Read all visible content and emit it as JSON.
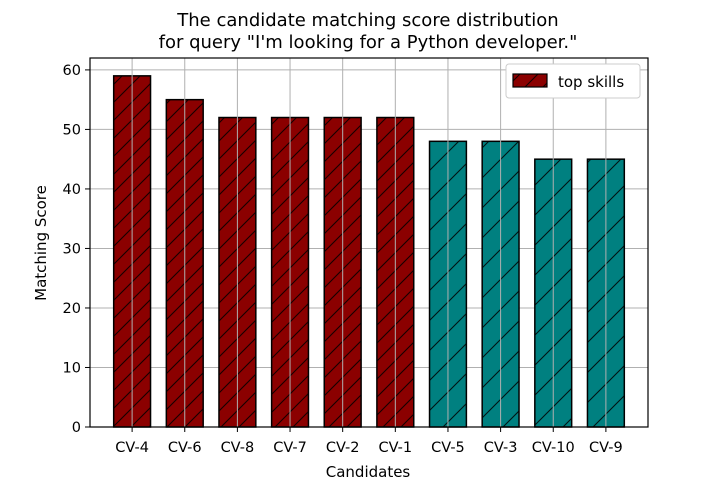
{
  "chart_data": {
    "type": "bar",
    "title_line1": "The candidate matching score distribution",
    "title_line2": "for query \"I'm looking for a Python developer.\"",
    "xlabel": "Candidates",
    "ylabel": "Matching Score",
    "ylim": [
      0,
      62
    ],
    "yticks": [
      0,
      10,
      20,
      30,
      40,
      50,
      60
    ],
    "grid": true,
    "legend_position": "top-right",
    "categories": [
      "CV-4",
      "CV-6",
      "CV-8",
      "CV-7",
      "CV-2",
      "CV-1",
      "CV-5",
      "CV-3",
      "CV-10",
      "CV-9"
    ],
    "values": [
      59,
      55,
      52,
      52,
      52,
      52,
      48,
      48,
      45,
      45
    ],
    "groups": [
      "top",
      "top",
      "top",
      "top",
      "top",
      "top",
      "other",
      "other",
      "other",
      "other"
    ],
    "legend": [
      {
        "label": "top skills",
        "color": "#8b0000"
      }
    ],
    "colors": {
      "top": "#8b0000",
      "other": "#008080",
      "edge": "#000000",
      "grid": "#b0b0b0"
    }
  }
}
